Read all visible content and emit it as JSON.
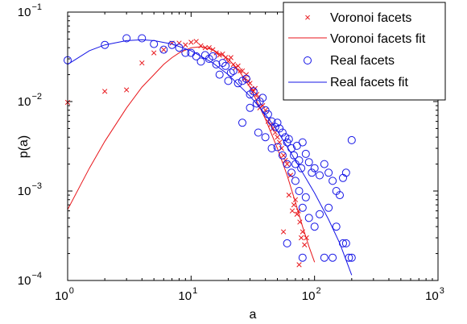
{
  "chart_data": {
    "type": "scatter",
    "xlabel": "a",
    "ylabel": "p(a)",
    "xscale": "log",
    "yscale": "log",
    "xlim": [
      1,
      1000
    ],
    "ylim": [
      0.0001,
      0.1
    ],
    "xticks": [
      {
        "value": 1,
        "base": "10",
        "exp": "0"
      },
      {
        "value": 10,
        "base": "10",
        "exp": "1"
      },
      {
        "value": 100,
        "base": "10",
        "exp": "2"
      },
      {
        "value": 1000,
        "base": "10",
        "exp": "3"
      }
    ],
    "yticks": [
      {
        "value": 0.0001,
        "base": "10",
        "exp": "−4"
      },
      {
        "value": 0.001,
        "base": "10",
        "exp": "−3"
      },
      {
        "value": 0.01,
        "base": "10",
        "exp": "−2"
      },
      {
        "value": 0.1,
        "base": "10",
        "exp": "−1"
      }
    ],
    "legend_position": "top-right",
    "colors": {
      "voronoi": "#e8161b",
      "real": "#1414e6"
    },
    "series": [
      {
        "name": "Voronoi facets",
        "kind": "scatter",
        "marker": "x",
        "color": "#e8161b",
        "points": [
          [
            1,
            0.0098
          ],
          [
            2,
            0.013
          ],
          [
            3,
            0.0135
          ],
          [
            4,
            0.027
          ],
          [
            5,
            0.035
          ],
          [
            6,
            0.038
          ],
          [
            7,
            0.045
          ],
          [
            8,
            0.045
          ],
          [
            9,
            0.043
          ],
          [
            10,
            0.046
          ],
          [
            11,
            0.047
          ],
          [
            12,
            0.042
          ],
          [
            13,
            0.04
          ],
          [
            14,
            0.04
          ],
          [
            15,
            0.038
          ],
          [
            16,
            0.035
          ],
          [
            17,
            0.033
          ],
          [
            18,
            0.034
          ],
          [
            19,
            0.031
          ],
          [
            20,
            0.028
          ],
          [
            21,
            0.031
          ],
          [
            22,
            0.026
          ],
          [
            23,
            0.024
          ],
          [
            24,
            0.025
          ],
          [
            25,
            0.022
          ],
          [
            26,
            0.022
          ],
          [
            27,
            0.018
          ],
          [
            28,
            0.02
          ],
          [
            29,
            0.017
          ],
          [
            30,
            0.016
          ],
          [
            31,
            0.014
          ],
          [
            32,
            0.013
          ],
          [
            33,
            0.014
          ],
          [
            34,
            0.012
          ],
          [
            35,
            0.011
          ],
          [
            36,
            0.0085
          ],
          [
            38,
            0.009
          ],
          [
            40,
            0.008
          ],
          [
            42,
            0.006
          ],
          [
            44,
            0.0055
          ],
          [
            46,
            0.005
          ],
          [
            48,
            0.0045
          ],
          [
            50,
            0.004
          ],
          [
            52,
            0.0035
          ],
          [
            54,
            0.003
          ],
          [
            56,
            0.0025
          ],
          [
            58,
            0.0022
          ],
          [
            60,
            0.002
          ],
          [
            62,
            0.0009
          ],
          [
            64,
            0.0015
          ],
          [
            66,
            0.0006
          ],
          [
            68,
            0.0007
          ],
          [
            70,
            0.0008
          ],
          [
            72,
            0.00055
          ],
          [
            74,
            0.0006
          ],
          [
            76,
            0.00045
          ],
          [
            78,
            0.0003
          ],
          [
            80,
            0.00035
          ],
          [
            83,
            0.00025
          ],
          [
            86,
            0.0003
          ],
          [
            56,
            0.00035
          ],
          [
            75,
            0.00015
          ]
        ]
      },
      {
        "name": "Voronoi facets fit",
        "kind": "line",
        "color": "#e8161b",
        "points": [
          [
            1,
            0.00062
          ],
          [
            1.5,
            0.0018
          ],
          [
            2,
            0.0036
          ],
          [
            3,
            0.0085
          ],
          [
            4,
            0.0145
          ],
          [
            5,
            0.02
          ],
          [
            6,
            0.026
          ],
          [
            7,
            0.031
          ],
          [
            8,
            0.035
          ],
          [
            10,
            0.04
          ],
          [
            12,
            0.041
          ],
          [
            15,
            0.038
          ],
          [
            20,
            0.03
          ],
          [
            25,
            0.021
          ],
          [
            30,
            0.0145
          ],
          [
            40,
            0.0064
          ],
          [
            50,
            0.003
          ],
          [
            60,
            0.0015
          ],
          [
            70,
            0.00075
          ],
          [
            80,
            0.0004
          ],
          [
            90,
            0.00024
          ],
          [
            100,
            0.00016
          ]
        ]
      },
      {
        "name": "Real facets",
        "kind": "scatter",
        "marker": "o",
        "color": "#1414e6",
        "points": [
          [
            1,
            0.029
          ],
          [
            2,
            0.043
          ],
          [
            3,
            0.051
          ],
          [
            4,
            0.051
          ],
          [
            5,
            0.044
          ],
          [
            6,
            0.038
          ],
          [
            7,
            0.043
          ],
          [
            8,
            0.04
          ],
          [
            9,
            0.035
          ],
          [
            10,
            0.035
          ],
          [
            11,
            0.032
          ],
          [
            12,
            0.028
          ],
          [
            13,
            0.033
          ],
          [
            14,
            0.03
          ],
          [
            15,
            0.032
          ],
          [
            16,
            0.026
          ],
          [
            17,
            0.02
          ],
          [
            18,
            0.027
          ],
          [
            19,
            0.025
          ],
          [
            20,
            0.017
          ],
          [
            21,
            0.021
          ],
          [
            22,
            0.022
          ],
          [
            24,
            0.016
          ],
          [
            26,
            0.017
          ],
          [
            28,
            0.018
          ],
          [
            30,
            0.012
          ],
          [
            32,
            0.013
          ],
          [
            34,
            0.0095
          ],
          [
            36,
            0.01
          ],
          [
            38,
            0.011
          ],
          [
            40,
            0.008
          ],
          [
            42,
            0.0072
          ],
          [
            45,
            0.006
          ],
          [
            48,
            0.0052
          ],
          [
            50,
            0.0058
          ],
          [
            52,
            0.005
          ],
          [
            55,
            0.0045
          ],
          [
            58,
            0.004
          ],
          [
            60,
            0.0035
          ],
          [
            62,
            0.0038
          ],
          [
            65,
            0.003
          ],
          [
            68,
            0.0025
          ],
          [
            70,
            0.002
          ],
          [
            72,
            0.0032
          ],
          [
            75,
            0.0022
          ],
          [
            78,
            0.0018
          ],
          [
            80,
            0.0035
          ],
          [
            85,
            0.0026
          ],
          [
            90,
            0.0021
          ],
          [
            95,
            0.0016
          ],
          [
            100,
            0.0018
          ],
          [
            110,
            0.0015
          ],
          [
            120,
            0.002
          ],
          [
            130,
            0.0016
          ],
          [
            140,
            0.0013
          ],
          [
            150,
            0.001
          ],
          [
            160,
            0.0009
          ],
          [
            170,
            0.0014
          ],
          [
            180,
            0.0016
          ],
          [
            200,
            0.0037
          ],
          [
            26,
            0.0058
          ],
          [
            30,
            0.0085
          ],
          [
            35,
            0.0045
          ],
          [
            40,
            0.004
          ],
          [
            45,
            0.003
          ],
          [
            50,
            0.0031
          ],
          [
            55,
            0.0025
          ],
          [
            60,
            0.002
          ],
          [
            65,
            0.0016
          ],
          [
            70,
            0.0013
          ],
          [
            75,
            0.001
          ],
          [
            80,
            0.00065
          ],
          [
            85,
            0.00085
          ],
          [
            90,
            0.0005
          ],
          [
            100,
            0.0004
          ],
          [
            110,
            0.00055
          ],
          [
            130,
            0.00065
          ],
          [
            150,
            0.0004
          ],
          [
            170,
            0.00026
          ],
          [
            190,
            0.00018
          ],
          [
            200,
            0.00018
          ],
          [
            180,
            0.00026
          ],
          [
            80,
            0.00018
          ],
          [
            60,
            0.00026
          ],
          [
            120,
            0.00018
          ],
          [
            140,
            0.00018
          ]
        ]
      },
      {
        "name": "Real facets fit",
        "kind": "line",
        "color": "#1414e6",
        "points": [
          [
            1,
            0.026
          ],
          [
            1.5,
            0.037
          ],
          [
            2,
            0.043
          ],
          [
            3,
            0.048
          ],
          [
            4,
            0.049
          ],
          [
            5,
            0.048
          ],
          [
            7,
            0.044
          ],
          [
            10,
            0.037
          ],
          [
            15,
            0.027
          ],
          [
            20,
            0.02
          ],
          [
            30,
            0.0115
          ],
          [
            40,
            0.0072
          ],
          [
            50,
            0.0047
          ],
          [
            70,
            0.0022
          ],
          [
            100,
            0.00095
          ],
          [
            130,
            0.00048
          ],
          [
            160,
            0.00026
          ],
          [
            200,
            0.000115
          ]
        ]
      }
    ]
  }
}
